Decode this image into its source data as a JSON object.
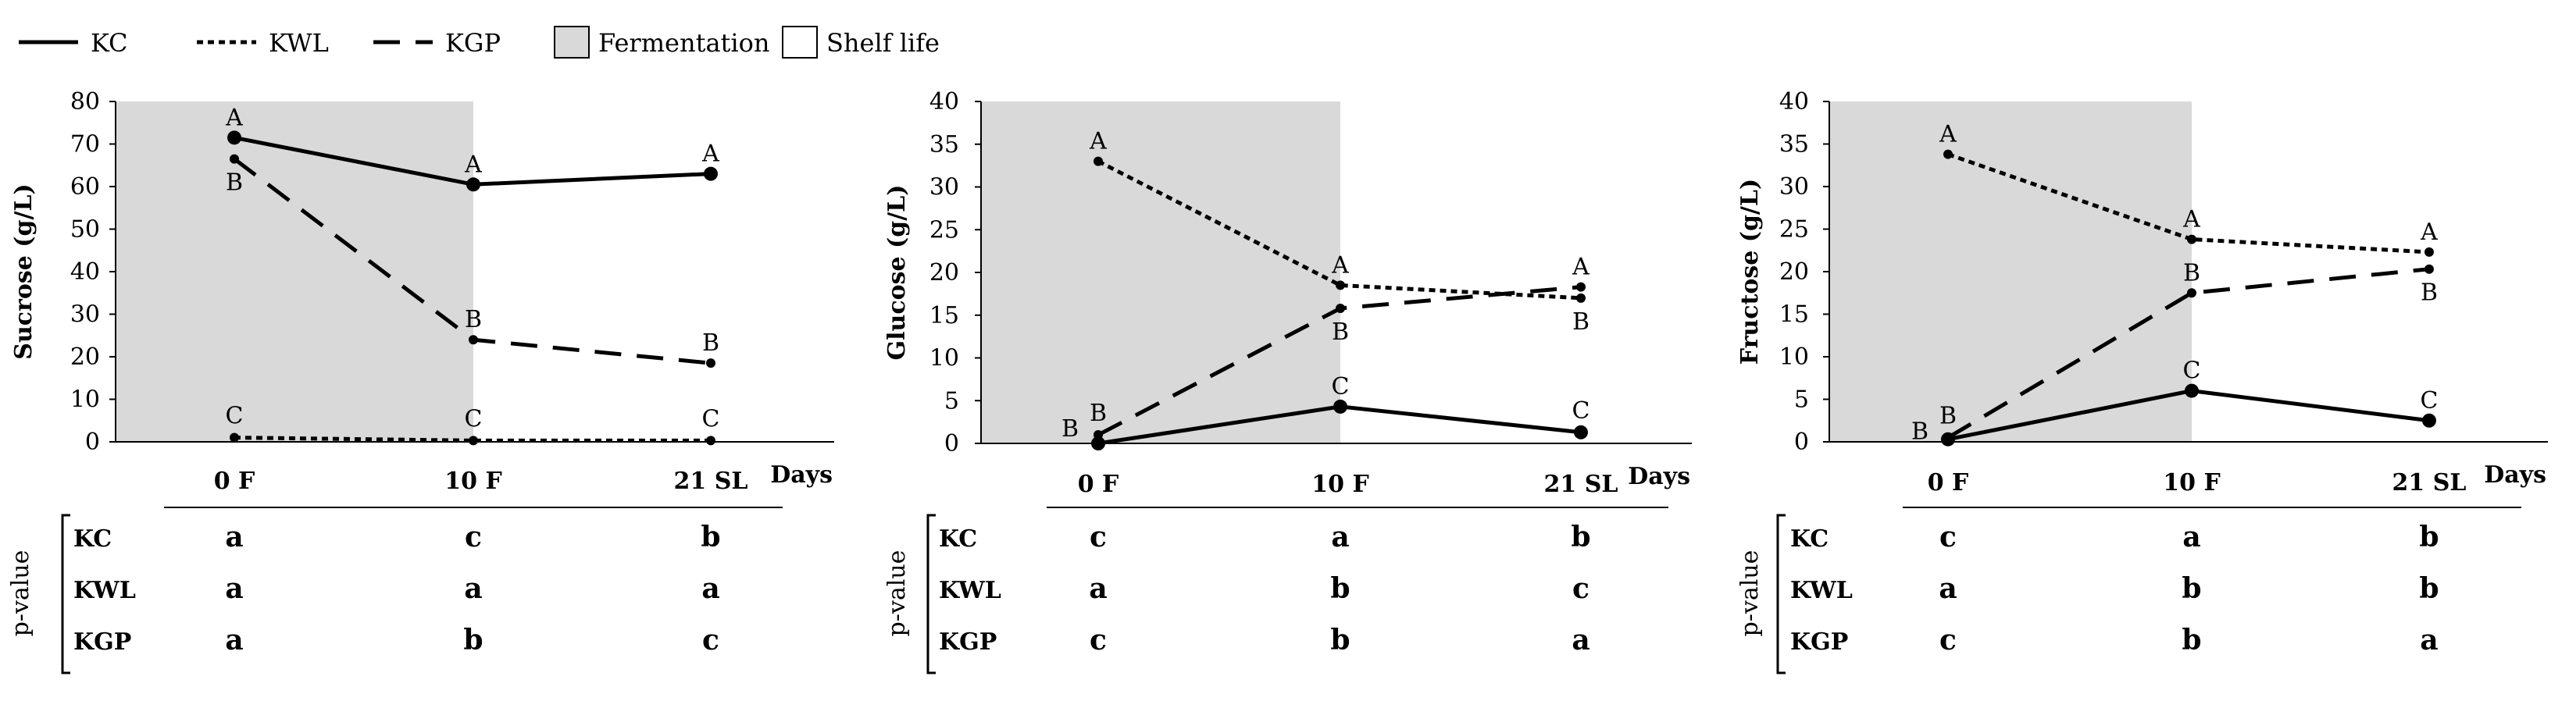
{
  "legend": {
    "items": [
      {
        "label": "KC",
        "style": "solid"
      },
      {
        "label": "KWL",
        "style": "dotted"
      },
      {
        "label": "KGP",
        "style": "dashed"
      }
    ],
    "boxes": [
      {
        "label": "Fermentation",
        "fill": "#d9d9d9"
      },
      {
        "label": "Shelf life",
        "fill": "#ffffff"
      }
    ]
  },
  "colors": {
    "shade": "#d9d9d9",
    "line": "#000000"
  },
  "pvalue_label": "p-value",
  "chart_data": [
    {
      "type": "line",
      "ylabel": "Sucrose (g/L)",
      "xlabel": "Days",
      "categories": [
        "0 F",
        "10 F",
        "21 SL"
      ],
      "ylim": [
        0,
        80
      ],
      "yticks": [
        0,
        10,
        20,
        30,
        40,
        50,
        60,
        70,
        80
      ],
      "shaded_categories": [
        "0 F",
        "10 F"
      ],
      "series": [
        {
          "name": "KC",
          "style": "solid",
          "values": [
            71.5,
            60.5,
            63
          ],
          "letters": [
            "A",
            "A",
            "A"
          ]
        },
        {
          "name": "KWL",
          "style": "dotted",
          "values": [
            1,
            0.3,
            0.3
          ],
          "letters": [
            "C",
            "C",
            "C"
          ]
        },
        {
          "name": "KGP",
          "style": "dashed",
          "values": [
            66.5,
            24,
            18.5
          ],
          "letters": [
            "B",
            "B",
            "B"
          ]
        }
      ],
      "pvalues": [
        {
          "name": "KC",
          "values": [
            "a",
            "c",
            "b"
          ]
        },
        {
          "name": "KWL",
          "values": [
            "a",
            "a",
            "a"
          ]
        },
        {
          "name": "KGP",
          "values": [
            "a",
            "b",
            "c"
          ]
        }
      ]
    },
    {
      "type": "line",
      "ylabel": "Glucose (g/L)",
      "xlabel": "Days",
      "categories": [
        "0 F",
        "10 F",
        "21 SL"
      ],
      "ylim": [
        0,
        40
      ],
      "yticks": [
        0,
        5,
        10,
        15,
        20,
        25,
        30,
        35,
        40
      ],
      "shaded_categories": [
        "0 F",
        "10 F"
      ],
      "series": [
        {
          "name": "KC",
          "style": "solid",
          "values": [
            0,
            4.3,
            1.3
          ],
          "letters": [
            "",
            "C",
            "C"
          ]
        },
        {
          "name": "KWL",
          "style": "dotted",
          "values": [
            33,
            18.5,
            17
          ],
          "letters": [
            "A",
            "A",
            "B"
          ]
        },
        {
          "name": "KGP",
          "style": "dashed",
          "values": [
            1,
            15.8,
            18.3
          ],
          "letters": [
            "B",
            "B",
            "A"
          ]
        }
      ],
      "extra_letters": [
        {
          "category": "0 F",
          "text": "B",
          "value": 1
        }
      ],
      "pvalues": [
        {
          "name": "KC",
          "values": [
            "c",
            "a",
            "b"
          ]
        },
        {
          "name": "KWL",
          "values": [
            "a",
            "b",
            "c"
          ]
        },
        {
          "name": "KGP",
          "values": [
            "c",
            "b",
            "a"
          ]
        }
      ]
    },
    {
      "type": "line",
      "ylabel": "Fructose (g/L)",
      "xlabel": "Days",
      "categories": [
        "0 F",
        "10 F",
        "21 SL"
      ],
      "ylim": [
        0,
        40
      ],
      "yticks": [
        0,
        5,
        10,
        15,
        20,
        25,
        30,
        35,
        40
      ],
      "shaded_categories": [
        "0 F",
        "10 F"
      ],
      "series": [
        {
          "name": "KC",
          "style": "solid",
          "values": [
            0.3,
            6,
            2.5
          ],
          "letters": [
            "",
            "C",
            "C"
          ]
        },
        {
          "name": "KWL",
          "style": "dotted",
          "values": [
            33.8,
            23.8,
            22.3
          ],
          "letters": [
            "A",
            "A",
            "A"
          ]
        },
        {
          "name": "KGP",
          "style": "dashed",
          "values": [
            0.5,
            17.5,
            20.3
          ],
          "letters": [
            "B",
            "B",
            "B"
          ]
        }
      ],
      "extra_letters": [
        {
          "category": "0 F",
          "text": "B",
          "value": 0.5
        }
      ],
      "pvalues": [
        {
          "name": "KC",
          "values": [
            "c",
            "a",
            "b"
          ]
        },
        {
          "name": "KWL",
          "values": [
            "a",
            "b",
            "b"
          ]
        },
        {
          "name": "KGP",
          "values": [
            "c",
            "b",
            "a"
          ]
        }
      ]
    }
  ]
}
